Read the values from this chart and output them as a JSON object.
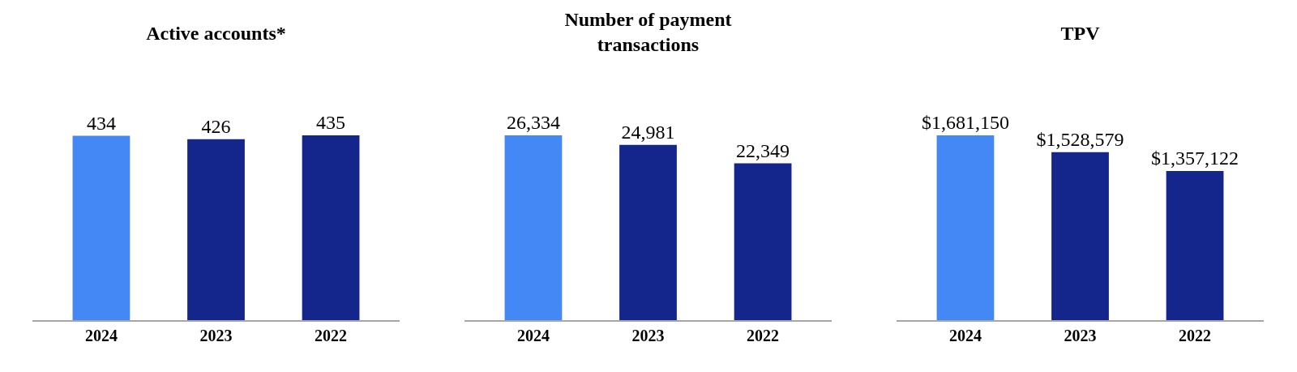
{
  "chart_data": [
    {
      "type": "bar",
      "title": "Active accounts*",
      "categories": [
        "2024",
        "2023",
        "2022"
      ],
      "values": [
        434,
        426,
        435
      ],
      "colors": [
        "#4488f5",
        "#14258c",
        "#14258c"
      ],
      "data_labels": true,
      "tick_labels": "x"
    },
    {
      "type": "bar",
      "title": "Number of payment transactions",
      "categories": [
        "2024",
        "2023",
        "2022"
      ],
      "values": [
        26334,
        24981,
        22349
      ],
      "value_labels": [
        "26,334",
        "24,981",
        "22,349"
      ],
      "colors": [
        "#4488f5",
        "#14258c",
        "#14258c"
      ],
      "tick_labels": "x"
    },
    {
      "type": "bar",
      "title": "TPV",
      "categories": [
        "2024",
        "2023",
        "2022"
      ],
      "values": [
        1681150,
        1528579,
        1357122
      ],
      "value_labels": [
        "$1,681,150",
        "$1,528,579",
        "$1,357,122"
      ],
      "colors": [
        "#4488f5",
        "#14258c",
        "#14258c"
      ],
      "tick_labels": "x"
    }
  ]
}
